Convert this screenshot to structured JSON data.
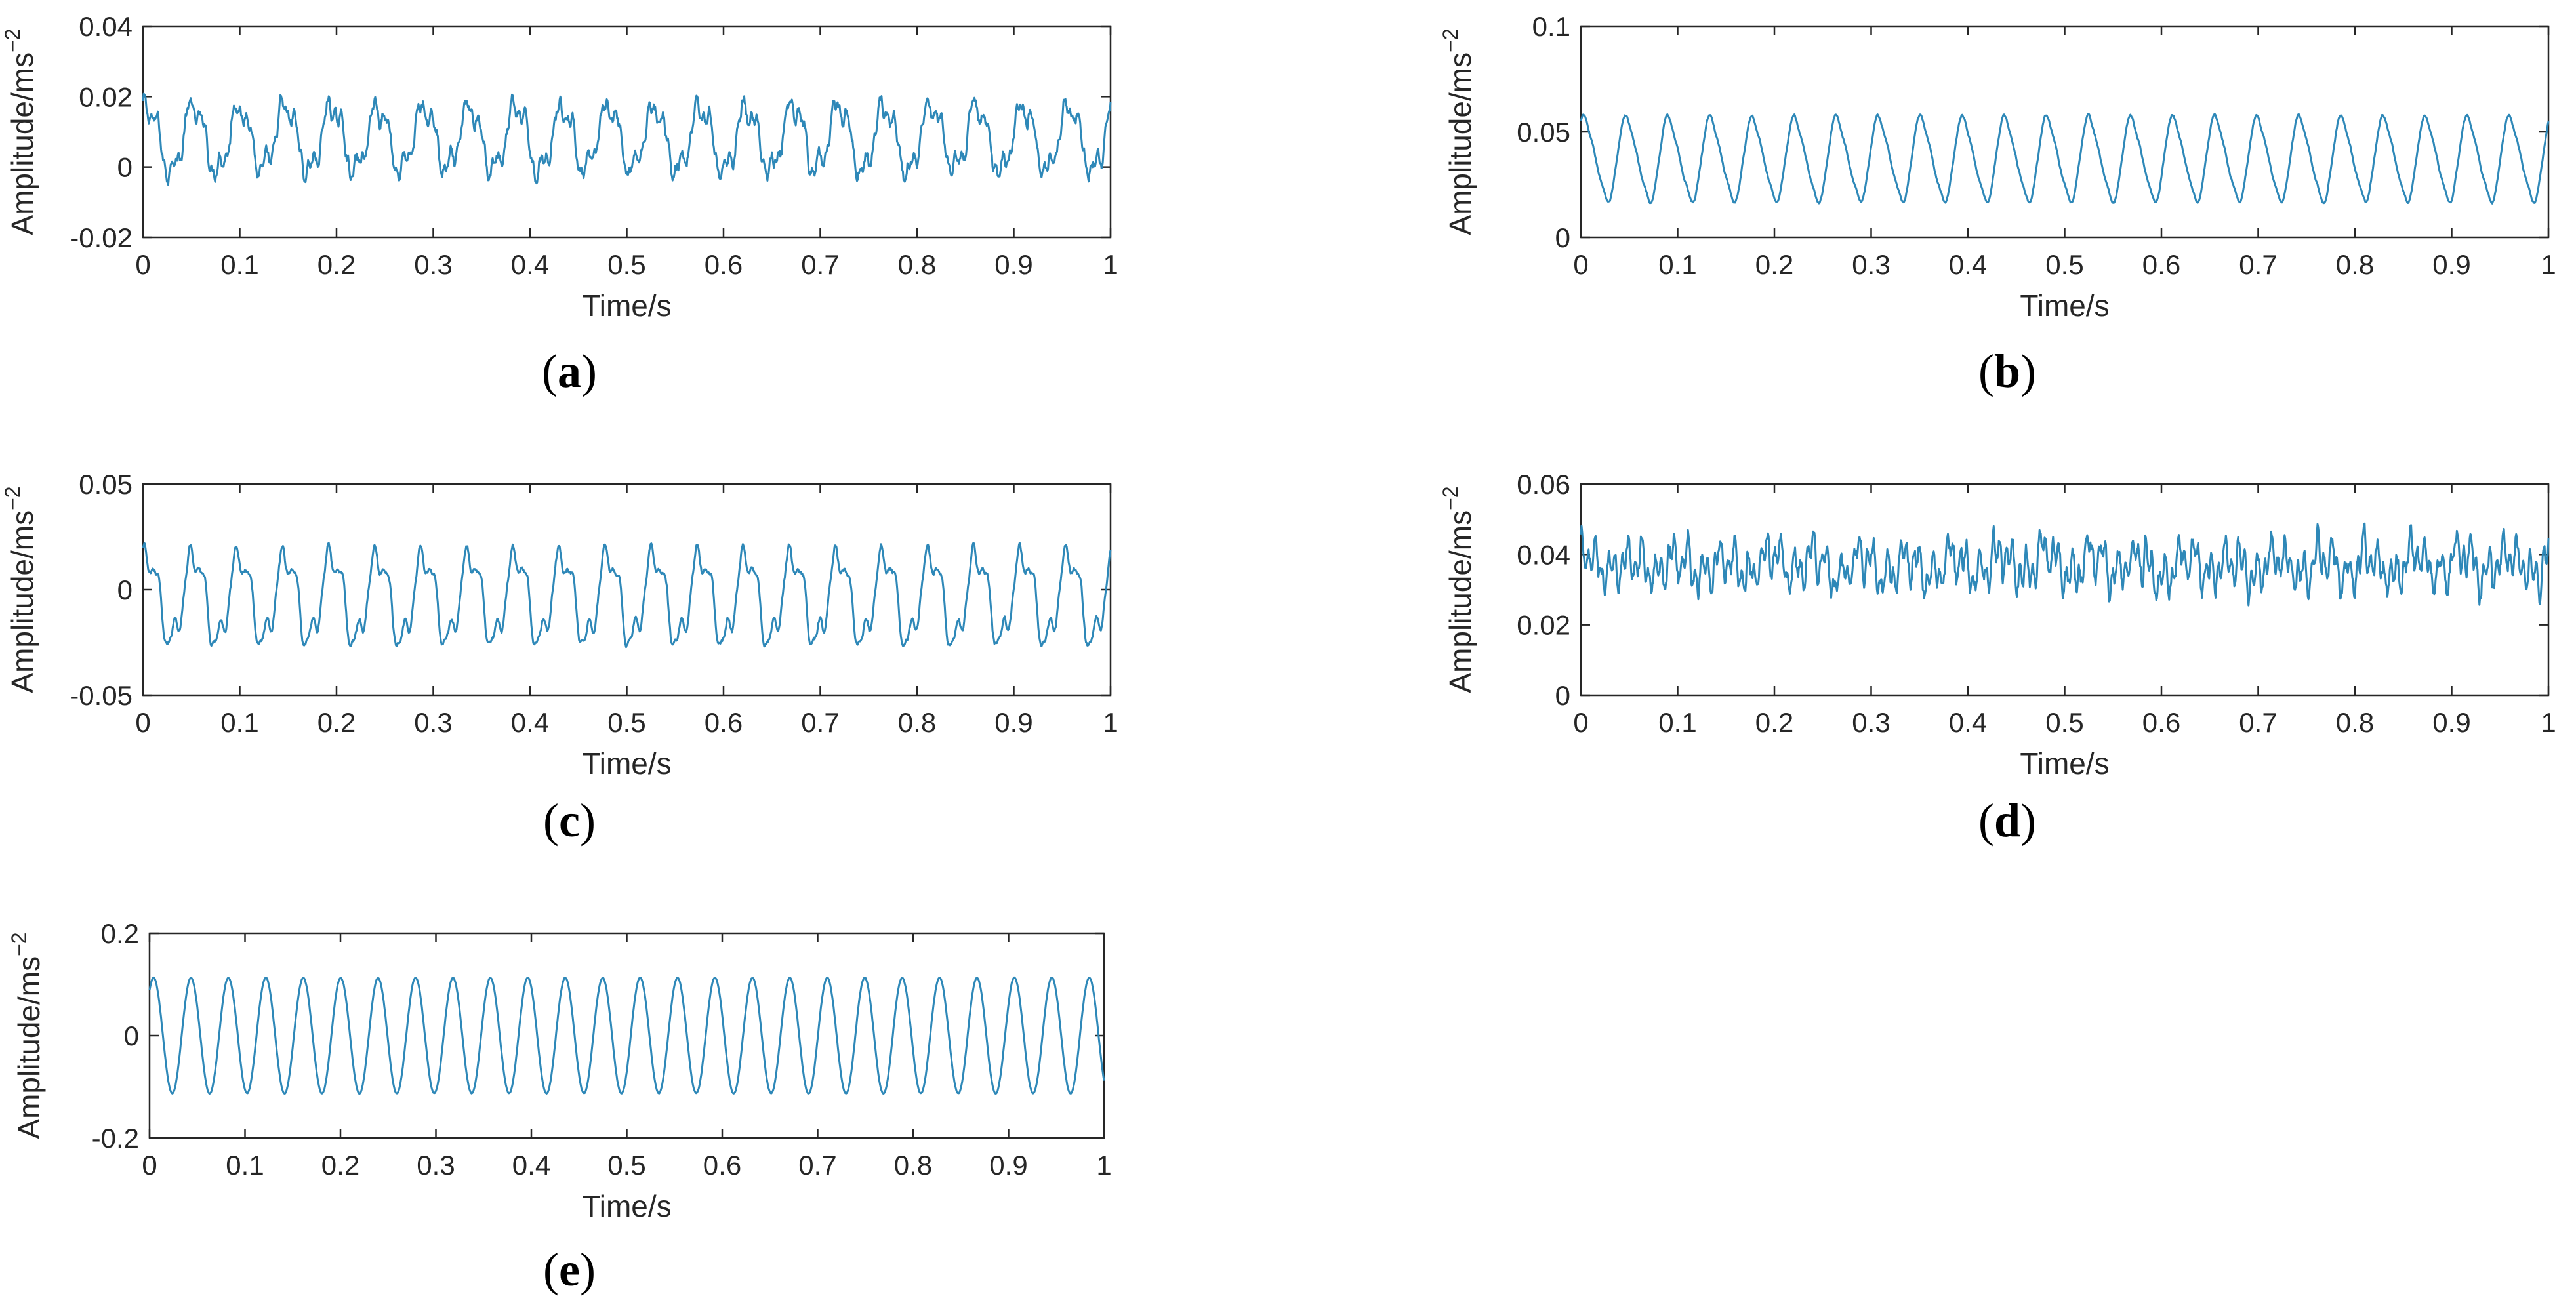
{
  "figure": {
    "line_color": "#2e88b8",
    "axis_color": "#262626"
  },
  "chart_data": [
    {
      "panel_label": "a",
      "type": "line",
      "xlabel": "Time/s",
      "ylabel": "Amplitude/ms",
      "ylabel_superscript": "−2",
      "xlim": [
        0,
        1
      ],
      "ylim": [
        -0.02,
        0.04
      ],
      "xticks": [
        0,
        0.1,
        0.2,
        0.3,
        0.4,
        0.5,
        0.6,
        0.7,
        0.8,
        0.9,
        1
      ],
      "xtick_labels": [
        "0",
        "0.1",
        "0.2",
        "0.3",
        "0.4",
        "0.5",
        "0.6",
        "0.7",
        "0.8",
        "0.9",
        "1"
      ],
      "yticks": [
        -0.02,
        0,
        0.02,
        0.04
      ],
      "ytick_labels": [
        "-0.02",
        "0",
        "0.02",
        "0.04"
      ],
      "signal": {
        "offset": 0.008,
        "f1": 21,
        "a1": 0.009,
        "f2": 63,
        "a2": 0.003,
        "f3": 142,
        "a3": 0.0015,
        "noise": 0.0012
      }
    },
    {
      "panel_label": "b",
      "type": "line",
      "xlabel": "Time/s",
      "ylabel": "Amplitude/ms",
      "ylabel_superscript": "−2",
      "xlim": [
        0,
        1
      ],
      "ylim": [
        0,
        0.1
      ],
      "xticks": [
        0,
        0.1,
        0.2,
        0.3,
        0.4,
        0.5,
        0.6,
        0.7,
        0.8,
        0.9,
        1
      ],
      "xtick_labels": [
        "0",
        "0.1",
        "0.2",
        "0.3",
        "0.4",
        "0.5",
        "0.6",
        "0.7",
        "0.8",
        "0.9",
        "1"
      ],
      "yticks": [
        0,
        0.05,
        0.1
      ],
      "ytick_labels": [
        "0",
        "0.05",
        "0.1"
      ],
      "signal": {
        "offset": 0.037,
        "f1": 23,
        "a1": 0.019,
        "f2": 46,
        "a2": 0.003,
        "f3": 92,
        "a3": 0.0008,
        "noise": 0.0004
      }
    },
    {
      "panel_label": "c",
      "type": "line",
      "xlabel": "Time/s",
      "ylabel": "Amplitude/ms",
      "ylabel_superscript": "−2",
      "xlim": [
        0,
        1
      ],
      "ylim": [
        -0.05,
        0.05
      ],
      "xticks": [
        0,
        0.1,
        0.2,
        0.3,
        0.4,
        0.5,
        0.6,
        0.7,
        0.8,
        0.9,
        1
      ],
      "xtick_labels": [
        "0",
        "0.1",
        "0.2",
        "0.3",
        "0.4",
        "0.5",
        "0.6",
        "0.7",
        "0.8",
        "0.9",
        "1"
      ],
      "yticks": [
        -0.05,
        0,
        0.05
      ],
      "ytick_labels": [
        "-0.05",
        "0",
        "0.05"
      ],
      "signal": {
        "offset": -0.004,
        "f1": 21,
        "a1": 0.02,
        "f2": 63,
        "a2": 0.007,
        "f3": 126,
        "a3": 0.002,
        "noise": 0.0008
      }
    },
    {
      "panel_label": "d",
      "type": "line",
      "xlabel": "Time/s",
      "ylabel": "Amplitude/ms",
      "ylabel_superscript": "−2",
      "xlim": [
        0,
        1
      ],
      "ylim": [
        0,
        0.06
      ],
      "xticks": [
        0,
        0.1,
        0.2,
        0.3,
        0.4,
        0.5,
        0.6,
        0.7,
        0.8,
        0.9,
        1
      ],
      "xtick_labels": [
        "0",
        "0.1",
        "0.2",
        "0.3",
        "0.4",
        "0.5",
        "0.6",
        "0.7",
        "0.8",
        "0.9",
        "1"
      ],
      "yticks": [
        0,
        0.02,
        0.04,
        0.06
      ],
      "ytick_labels": [
        "0",
        "0.02",
        "0.04",
        "0.06"
      ],
      "signal": {
        "offset": 0.037,
        "f1": 21,
        "a1": 0.003,
        "f2": 63,
        "a2": 0.004,
        "f3": 146,
        "a3": 0.0035,
        "noise": 0.002
      }
    },
    {
      "panel_label": "e",
      "type": "line",
      "xlabel": "Time/s",
      "ylabel": "Amplitude/ms",
      "ylabel_superscript": "−2",
      "xlim": [
        0,
        1
      ],
      "ylim": [
        -0.2,
        0.2
      ],
      "xticks": [
        0,
        0.1,
        0.2,
        0.3,
        0.4,
        0.5,
        0.6,
        0.7,
        0.8,
        0.9,
        1
      ],
      "xtick_labels": [
        "0",
        "0.1",
        "0.2",
        "0.3",
        "0.4",
        "0.5",
        "0.6",
        "0.7",
        "0.8",
        "0.9",
        "1"
      ],
      "yticks": [
        -0.2,
        0,
        0.2
      ],
      "ytick_labels": [
        "-0.2",
        "0",
        "0.2"
      ],
      "signal": {
        "offset": 0,
        "f1": 25.5,
        "a1": 0.113,
        "f2": 51,
        "a2": 0,
        "f3": 76.5,
        "a3": 0,
        "noise": 0.0005
      }
    }
  ]
}
